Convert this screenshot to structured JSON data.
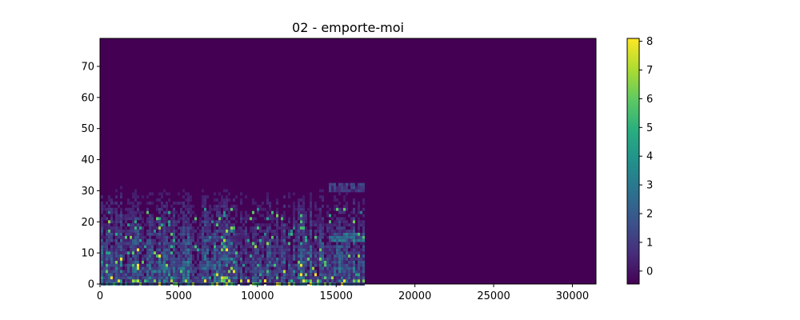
{
  "chart_data": {
    "type": "heatmap",
    "title": "02 - emporte-moi",
    "xlabel": "",
    "ylabel": "",
    "xlim": [
      0,
      31500
    ],
    "ylim": [
      0,
      79
    ],
    "x_ticks": [
      "0",
      "5000",
      "10000",
      "15000",
      "20000",
      "25000",
      "30000"
    ],
    "y_ticks": [
      "0",
      "10",
      "20",
      "30",
      "40",
      "50",
      "60",
      "70"
    ],
    "colorbar_ticks": [
      "0",
      "1",
      "2",
      "3",
      "4",
      "5",
      "6",
      "7",
      "8"
    ],
    "colorbar_range": [
      -0.45,
      8.1
    ],
    "colormap": "viridis",
    "signal_end_x": 16800,
    "background_value": -0.45,
    "grid": false
  }
}
